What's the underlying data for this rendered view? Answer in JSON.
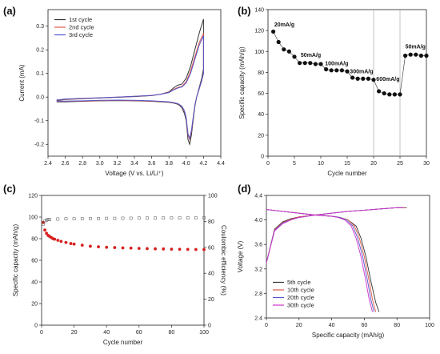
{
  "chart_data": [
    {
      "id": "a",
      "panel_label": "(a)",
      "type": "line",
      "xlabel": "Voltage (V vs. Li/Li⁺)",
      "ylabel": "Current (mA)",
      "xlim": [
        2.4,
        4.4
      ],
      "ylim": [
        -0.25,
        0.37
      ],
      "xticks": [
        2.4,
        2.6,
        2.8,
        3.0,
        3.2,
        3.4,
        3.6,
        3.8,
        4.0,
        4.2,
        4.4
      ],
      "yticks": [
        -0.2,
        -0.1,
        0.0,
        0.1,
        0.2,
        0.3
      ],
      "legend_position": "top-left",
      "series": [
        {
          "name": "1st cycle",
          "color": "#333333",
          "x": [
            2.5,
            2.6,
            2.8,
            3.0,
            3.2,
            3.4,
            3.6,
            3.7,
            3.8,
            3.85,
            3.9,
            3.95,
            4.0,
            4.05,
            4.1,
            4.15,
            4.2,
            4.2,
            4.18,
            4.15,
            4.12,
            4.1,
            4.08,
            4.06,
            4.04,
            4.02,
            4.0,
            3.98,
            3.95,
            3.92,
            3.9,
            3.85,
            3.8,
            3.7,
            3.6,
            3.4,
            3.2,
            3.0,
            2.8,
            2.6,
            2.5
          ],
          "y": [
            -0.015,
            -0.01,
            -0.007,
            -0.004,
            -0.001,
            0.002,
            0.006,
            0.012,
            0.022,
            0.038,
            0.05,
            0.055,
            0.08,
            0.13,
            0.2,
            0.27,
            0.33,
            0.12,
            0.08,
            0.04,
            0.0,
            -0.04,
            -0.1,
            -0.16,
            -0.2,
            -0.18,
            -0.1,
            -0.07,
            -0.045,
            -0.035,
            -0.03,
            -0.025,
            -0.022,
            -0.02,
            -0.018,
            -0.016,
            -0.015,
            -0.016,
            -0.018,
            -0.02,
            -0.02
          ]
        },
        {
          "name": "2nd cycle",
          "color": "#e05a4a",
          "x": [
            2.5,
            2.6,
            2.8,
            3.0,
            3.2,
            3.4,
            3.6,
            3.7,
            3.8,
            3.85,
            3.9,
            3.95,
            4.0,
            4.05,
            4.1,
            4.15,
            4.2,
            4.2,
            4.18,
            4.15,
            4.12,
            4.1,
            4.08,
            4.06,
            4.04,
            4.02,
            4.0,
            3.98,
            3.95,
            3.92,
            3.9,
            3.85,
            3.8,
            3.7,
            3.6,
            3.4,
            3.2,
            3.0,
            2.8,
            2.6,
            2.5
          ],
          "y": [
            -0.013,
            -0.009,
            -0.006,
            -0.003,
            0.0,
            0.003,
            0.007,
            0.012,
            0.02,
            0.032,
            0.04,
            0.045,
            0.065,
            0.11,
            0.17,
            0.23,
            0.27,
            0.1,
            0.07,
            0.035,
            0.0,
            -0.035,
            -0.09,
            -0.145,
            -0.18,
            -0.16,
            -0.09,
            -0.06,
            -0.04,
            -0.032,
            -0.028,
            -0.024,
            -0.021,
            -0.019,
            -0.017,
            -0.015,
            -0.014,
            -0.015,
            -0.017,
            -0.018,
            -0.018
          ]
        },
        {
          "name": "3rd cycle",
          "color": "#5555cc",
          "x": [
            2.5,
            2.6,
            2.8,
            3.0,
            3.2,
            3.4,
            3.6,
            3.7,
            3.8,
            3.85,
            3.9,
            3.95,
            4.0,
            4.05,
            4.1,
            4.15,
            4.2,
            4.2,
            4.18,
            4.15,
            4.12,
            4.1,
            4.08,
            4.06,
            4.04,
            4.02,
            4.0,
            3.98,
            3.95,
            3.92,
            3.9,
            3.85,
            3.8,
            3.7,
            3.6,
            3.4,
            3.2,
            3.0,
            2.8,
            2.6,
            2.5
          ],
          "y": [
            -0.012,
            -0.008,
            -0.005,
            -0.003,
            0.0,
            0.003,
            0.007,
            0.012,
            0.019,
            0.03,
            0.038,
            0.043,
            0.06,
            0.1,
            0.16,
            0.22,
            0.26,
            0.1,
            0.07,
            0.034,
            0.0,
            -0.034,
            -0.088,
            -0.14,
            -0.175,
            -0.155,
            -0.088,
            -0.058,
            -0.039,
            -0.031,
            -0.027,
            -0.023,
            -0.02,
            -0.018,
            -0.016,
            -0.014,
            -0.013,
            -0.014,
            -0.016,
            -0.017,
            -0.017
          ]
        }
      ]
    },
    {
      "id": "b",
      "panel_label": "(b)",
      "type": "scatter",
      "xlabel": "Cycle number",
      "ylabel": "Specific capacity (mAh/g)",
      "xlim": [
        0,
        30
      ],
      "ylim": [
        0,
        140
      ],
      "xticks": [
        0,
        5,
        10,
        15,
        20,
        25,
        30
      ],
      "yticks": [
        0,
        20,
        40,
        60,
        80,
        100,
        120,
        140
      ],
      "vlines": [
        20,
        25
      ],
      "series": [
        {
          "name": "capacity",
          "color": "#111111",
          "x": [
            1,
            2,
            3,
            4,
            5,
            6,
            7,
            8,
            9,
            10,
            11,
            12,
            13,
            14,
            15,
            16,
            17,
            18,
            19,
            20,
            21,
            22,
            23,
            24,
            25,
            26,
            27,
            28,
            29,
            30
          ],
          "y": [
            119,
            109,
            102,
            100,
            95,
            89,
            89,
            89,
            88,
            88,
            83,
            82,
            82,
            82,
            81,
            75,
            74,
            74,
            74,
            73,
            62,
            60,
            59,
            59,
            59,
            96,
            97,
            97,
            96,
            96
          ]
        }
      ],
      "annotations": [
        {
          "text": "20mA/g",
          "x": 1.2,
          "y": 124
        },
        {
          "text": "50mA/g",
          "x": 6.2,
          "y": 95
        },
        {
          "text": "100mA/g",
          "x": 10.8,
          "y": 87
        },
        {
          "text": "300mA/g",
          "x": 15.5,
          "y": 79
        },
        {
          "text": "600mA/g",
          "x": 20.5,
          "y": 72
        },
        {
          "text": "50mA/g",
          "x": 26.0,
          "y": 103
        }
      ]
    },
    {
      "id": "c",
      "panel_label": "(c)",
      "type": "scatter",
      "xlabel": "Cycle number",
      "ylabel": "Specific capacity (mAh/g)",
      "y2label": "Coulombic efficiency (%)",
      "xlim": [
        0,
        100
      ],
      "ylim": [
        0,
        120
      ],
      "y2lim": [
        0,
        100
      ],
      "xticks": [
        0,
        20,
        40,
        60,
        80,
        100
      ],
      "yticks": [
        0,
        20,
        40,
        60,
        80,
        100,
        120
      ],
      "y2ticks": [
        0,
        20,
        40,
        60,
        80,
        100
      ],
      "series": [
        {
          "name": "capacity",
          "color": "#d62020",
          "axis": "left",
          "x": [
            1,
            2,
            3,
            4,
            5,
            6,
            7,
            8,
            10,
            12,
            15,
            18,
            20,
            25,
            30,
            35,
            40,
            45,
            50,
            55,
            60,
            65,
            70,
            75,
            80,
            85,
            90,
            95,
            100
          ],
          "y": [
            95,
            88,
            85,
            83,
            82,
            81,
            80,
            79.5,
            78.5,
            77.5,
            76.5,
            75.5,
            75,
            74,
            73,
            72.5,
            72,
            71.8,
            71.5,
            71.3,
            71,
            70.8,
            70.6,
            70.5,
            70.3,
            70.2,
            70.1,
            70,
            69.9
          ]
        },
        {
          "name": "efficiency",
          "color": "#555555",
          "axis": "right",
          "x": [
            1,
            2,
            3,
            4,
            5,
            10,
            15,
            20,
            25,
            30,
            35,
            40,
            45,
            50,
            55,
            60,
            65,
            70,
            75,
            80,
            85,
            90,
            95,
            100
          ],
          "y": [
            78,
            80,
            81,
            81.5,
            81.5,
            81.8,
            82,
            82,
            82.1,
            82.2,
            82.2,
            82.3,
            82.3,
            82.4,
            82.4,
            82.5,
            82.5,
            82.5,
            82.6,
            82.6,
            82.6,
            82.7,
            82.7,
            82.7
          ]
        }
      ]
    },
    {
      "id": "d",
      "panel_label": "(d)",
      "type": "line",
      "xlabel": "Specific capacity (mAh/g)",
      "ylabel": "Voltage (V)",
      "xlim": [
        0,
        100
      ],
      "ylim": [
        2.4,
        4.4
      ],
      "xticks": [
        0,
        20,
        40,
        60,
        80,
        100
      ],
      "yticks": [
        2.4,
        2.8,
        3.2,
        3.6,
        4.0,
        4.4
      ],
      "legend_position": "bottom-left",
      "series": [
        {
          "name": "5th cycle",
          "color": "#333333",
          "charge_x": [
            0,
            5,
            10,
            15,
            20,
            30,
            40,
            50,
            60,
            70,
            80,
            86
          ],
          "charge_y": [
            3.3,
            3.85,
            3.97,
            4.02,
            4.05,
            4.08,
            4.11,
            4.14,
            4.16,
            4.18,
            4.2,
            4.2
          ],
          "discharge_x": [
            0,
            10,
            20,
            30,
            40,
            45,
            50,
            55,
            58,
            61,
            64,
            67,
            69
          ],
          "discharge_y": [
            4.17,
            4.14,
            4.11,
            4.08,
            4.06,
            4.04,
            4.0,
            3.9,
            3.7,
            3.4,
            3.0,
            2.65,
            2.5
          ]
        },
        {
          "name": "10th cycle",
          "color": "#e05a4a",
          "charge_x": [
            0,
            5,
            10,
            15,
            20,
            30,
            40,
            50,
            60,
            70,
            80,
            85
          ],
          "charge_y": [
            3.3,
            3.84,
            3.96,
            4.01,
            4.05,
            4.08,
            4.11,
            4.14,
            4.16,
            4.18,
            4.2,
            4.2
          ],
          "discharge_x": [
            0,
            10,
            20,
            30,
            40,
            45,
            50,
            54,
            57,
            60,
            63,
            65,
            67
          ],
          "discharge_y": [
            4.17,
            4.14,
            4.11,
            4.08,
            4.06,
            4.04,
            4.0,
            3.9,
            3.7,
            3.4,
            3.0,
            2.7,
            2.5
          ]
        },
        {
          "name": "20th cycle",
          "color": "#5555cc",
          "charge_x": [
            0,
            5,
            10,
            15,
            20,
            30,
            40,
            50,
            60,
            70,
            80,
            84
          ],
          "charge_y": [
            3.3,
            3.83,
            3.95,
            4.0,
            4.04,
            4.08,
            4.11,
            4.14,
            4.16,
            4.18,
            4.2,
            4.2
          ],
          "discharge_x": [
            0,
            10,
            20,
            30,
            40,
            45,
            49,
            53,
            56,
            59,
            62,
            64,
            66
          ],
          "discharge_y": [
            4.17,
            4.14,
            4.11,
            4.08,
            4.06,
            4.04,
            4.0,
            3.9,
            3.7,
            3.4,
            3.0,
            2.7,
            2.5
          ]
        },
        {
          "name": "30th cycle",
          "color": "#cc33cc",
          "charge_x": [
            0,
            5,
            10,
            15,
            20,
            30,
            40,
            50,
            60,
            70,
            80,
            84
          ],
          "charge_y": [
            3.3,
            3.82,
            3.94,
            4.0,
            4.04,
            4.08,
            4.11,
            4.14,
            4.16,
            4.18,
            4.2,
            4.2
          ],
          "discharge_x": [
            0,
            10,
            20,
            30,
            40,
            44,
            48,
            52,
            55,
            58,
            61,
            63,
            65
          ],
          "discharge_y": [
            4.17,
            4.14,
            4.11,
            4.08,
            4.06,
            4.04,
            4.0,
            3.9,
            3.7,
            3.4,
            3.0,
            2.7,
            2.5
          ]
        }
      ]
    }
  ]
}
